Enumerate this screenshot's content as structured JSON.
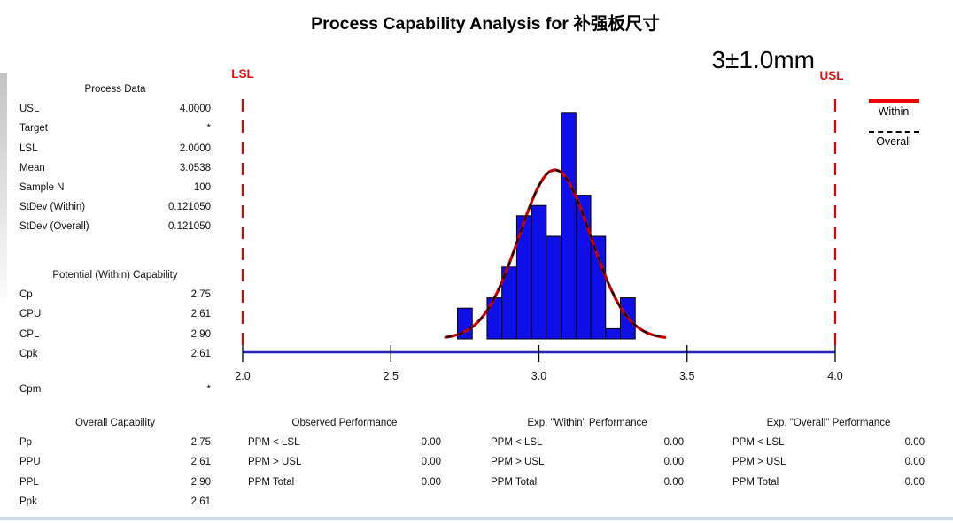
{
  "title": "Process Capability Analysis for 补强板尺寸",
  "annotation": {
    "spec": "3±1.0mm",
    "lsl_label": "LSL",
    "usl_label": "USL"
  },
  "legend": {
    "within": "Within",
    "overall": "Overall"
  },
  "colors": {
    "bar_fill": "#0f10e8",
    "bar_stroke": "#000000",
    "curve_within": "#cc0000",
    "curve_overall": "#000000",
    "spec_line": "#e60000",
    "spec_label": "#dd1111",
    "axis_line": "#2323bb",
    "tick_color": "#000000",
    "bottom_band": "#ccdae7"
  },
  "process_data": {
    "header": "Process Data",
    "rows": [
      {
        "label": "USL",
        "value": "4.0000"
      },
      {
        "label": "Target",
        "value": "*"
      },
      {
        "label": "LSL",
        "value": "2.0000"
      },
      {
        "label": "Mean",
        "value": "3.0538"
      },
      {
        "label": "Sample N",
        "value": "100"
      },
      {
        "label": "StDev (Within)",
        "value": "0.121050"
      },
      {
        "label": "StDev (Overall)",
        "value": "0.121050"
      }
    ]
  },
  "within_capability": {
    "header": "Potential (Within) Capability",
    "rows": [
      {
        "label": "Cp",
        "value": "2.75"
      },
      {
        "label": "CPU",
        "value": "2.61"
      },
      {
        "label": "CPL",
        "value": "2.90"
      },
      {
        "label": "Cpk",
        "value": "2.61"
      },
      {
        "label": "Cpm",
        "value": "*"
      }
    ]
  },
  "overall_capability": {
    "header": "Overall Capability",
    "rows": [
      {
        "label": "Pp",
        "value": "2.75"
      },
      {
        "label": "PPU",
        "value": "2.61"
      },
      {
        "label": "PPL",
        "value": "2.90"
      },
      {
        "label": "Ppk",
        "value": "2.61"
      }
    ]
  },
  "performance": [
    {
      "header": "Observed Performance",
      "rows": [
        {
          "label": "PPM < LSL",
          "value": "0.00"
        },
        {
          "label": "PPM > USL",
          "value": "0.00"
        },
        {
          "label": "PPM Total",
          "value": "0.00"
        }
      ]
    },
    {
      "header": "Exp. \"Within\" Performance",
      "rows": [
        {
          "label": "PPM < LSL",
          "value": "0.00"
        },
        {
          "label": "PPM > USL",
          "value": "0.00"
        },
        {
          "label": "PPM Total",
          "value": "0.00"
        }
      ]
    },
    {
      "header": "Exp. \"Overall\" Performance",
      "rows": [
        {
          "label": "PPM < LSL",
          "value": "0.00"
        },
        {
          "label": "PPM > USL",
          "value": "0.00"
        },
        {
          "label": "PPM Total",
          "value": "0.00"
        }
      ]
    }
  ],
  "chart_data": {
    "type": "bar",
    "subtype": "capability-histogram-with-normal-curves",
    "title": "Process Capability Analysis for 补强板尺寸",
    "xlabel": "",
    "ylabel": "",
    "xlim": [
      2.0,
      4.0
    ],
    "x_tick_values": [
      2.0,
      2.5,
      3.0,
      3.5,
      4.0
    ],
    "x_ticks": [
      "2.0",
      "2.5",
      "3.0",
      "3.5",
      "4.0"
    ],
    "grid": false,
    "legend_position": "top-right",
    "bin_width": 0.05,
    "bin_centers": [
      2.75,
      2.8,
      2.85,
      2.9,
      2.95,
      3.0,
      3.05,
      3.1,
      3.15,
      3.2,
      3.25,
      3.3
    ],
    "counts": [
      3,
      0,
      4,
      7,
      12,
      13,
      10,
      22,
      14,
      10,
      1,
      4
    ],
    "sample_n": 100,
    "mean": 3.0538,
    "stdev_within": 0.12105,
    "stdev_overall": 0.12105,
    "lsl": 2.0,
    "usl": 4.0,
    "target": null,
    "series": [
      {
        "name": "Within",
        "style": "solid",
        "color": "#cc0000"
      },
      {
        "name": "Overall",
        "style": "dashed",
        "color": "#000000"
      }
    ]
  }
}
